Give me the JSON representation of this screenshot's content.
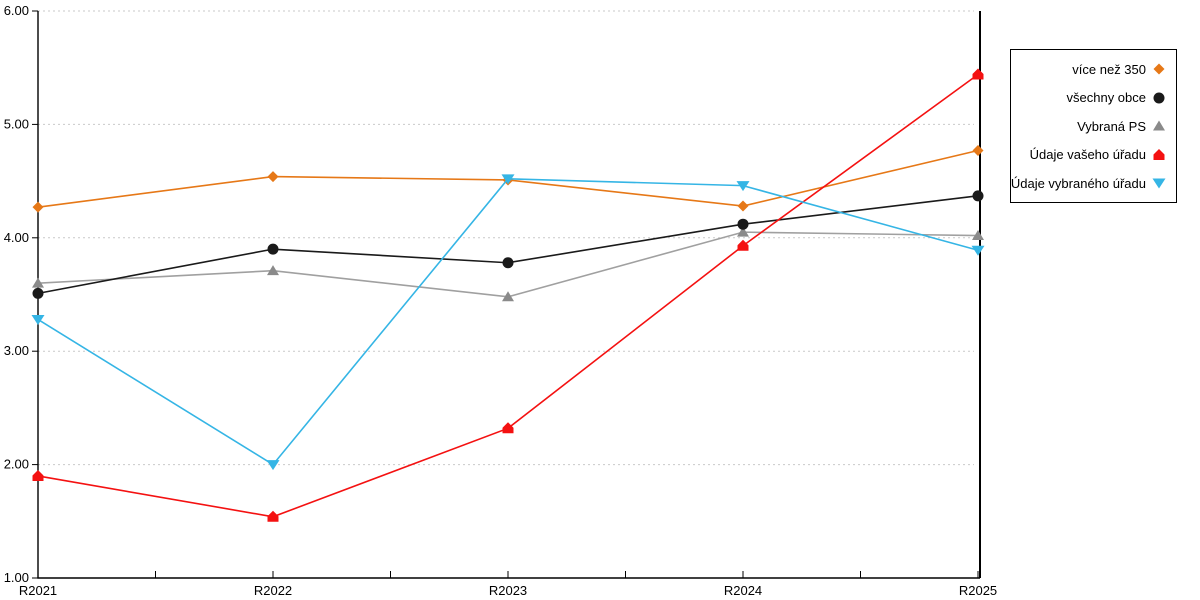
{
  "chart_data": {
    "type": "line",
    "title": "",
    "xlabel": "",
    "ylabel": "",
    "categories": [
      "R2021",
      "R2022",
      "R2023",
      "R2024",
      "R2025"
    ],
    "ylim": [
      1,
      6
    ],
    "ytick_labels": [
      "6.00",
      "5.00",
      "4.00",
      "3.00",
      "2.00",
      "1.00"
    ],
    "grid": "horizontal-dotted",
    "gridline_color": "#C9C9C9",
    "axis_color": "#000000",
    "legend_position": "right-outside",
    "series": [
      {
        "name": "více než 350",
        "color": "#E67817",
        "marker": "diamond",
        "values": [
          4.27,
          4.54,
          4.51,
          4.28,
          4.77
        ]
      },
      {
        "name": "všechny obce",
        "color": "#1A1A1A",
        "marker": "circle",
        "values": [
          3.51,
          3.9,
          3.78,
          4.12,
          4.37
        ]
      },
      {
        "name": "Vybraná PS",
        "color": "#A0A0A0",
        "marker_color": "#8A8A8A",
        "marker": "triangle-up",
        "values": [
          3.6,
          3.71,
          3.48,
          4.05,
          4.02
        ]
      },
      {
        "name": "Údaje vašeho úřadu",
        "color": "#F41111",
        "marker": "house",
        "values": [
          1.9,
          1.54,
          2.32,
          3.93,
          5.44
        ]
      },
      {
        "name": "Údaje vybraného úřadu",
        "color": "#35B5E5",
        "marker": "triangle-down",
        "values": [
          3.28,
          2.0,
          4.52,
          4.46,
          3.89
        ]
      }
    ]
  }
}
